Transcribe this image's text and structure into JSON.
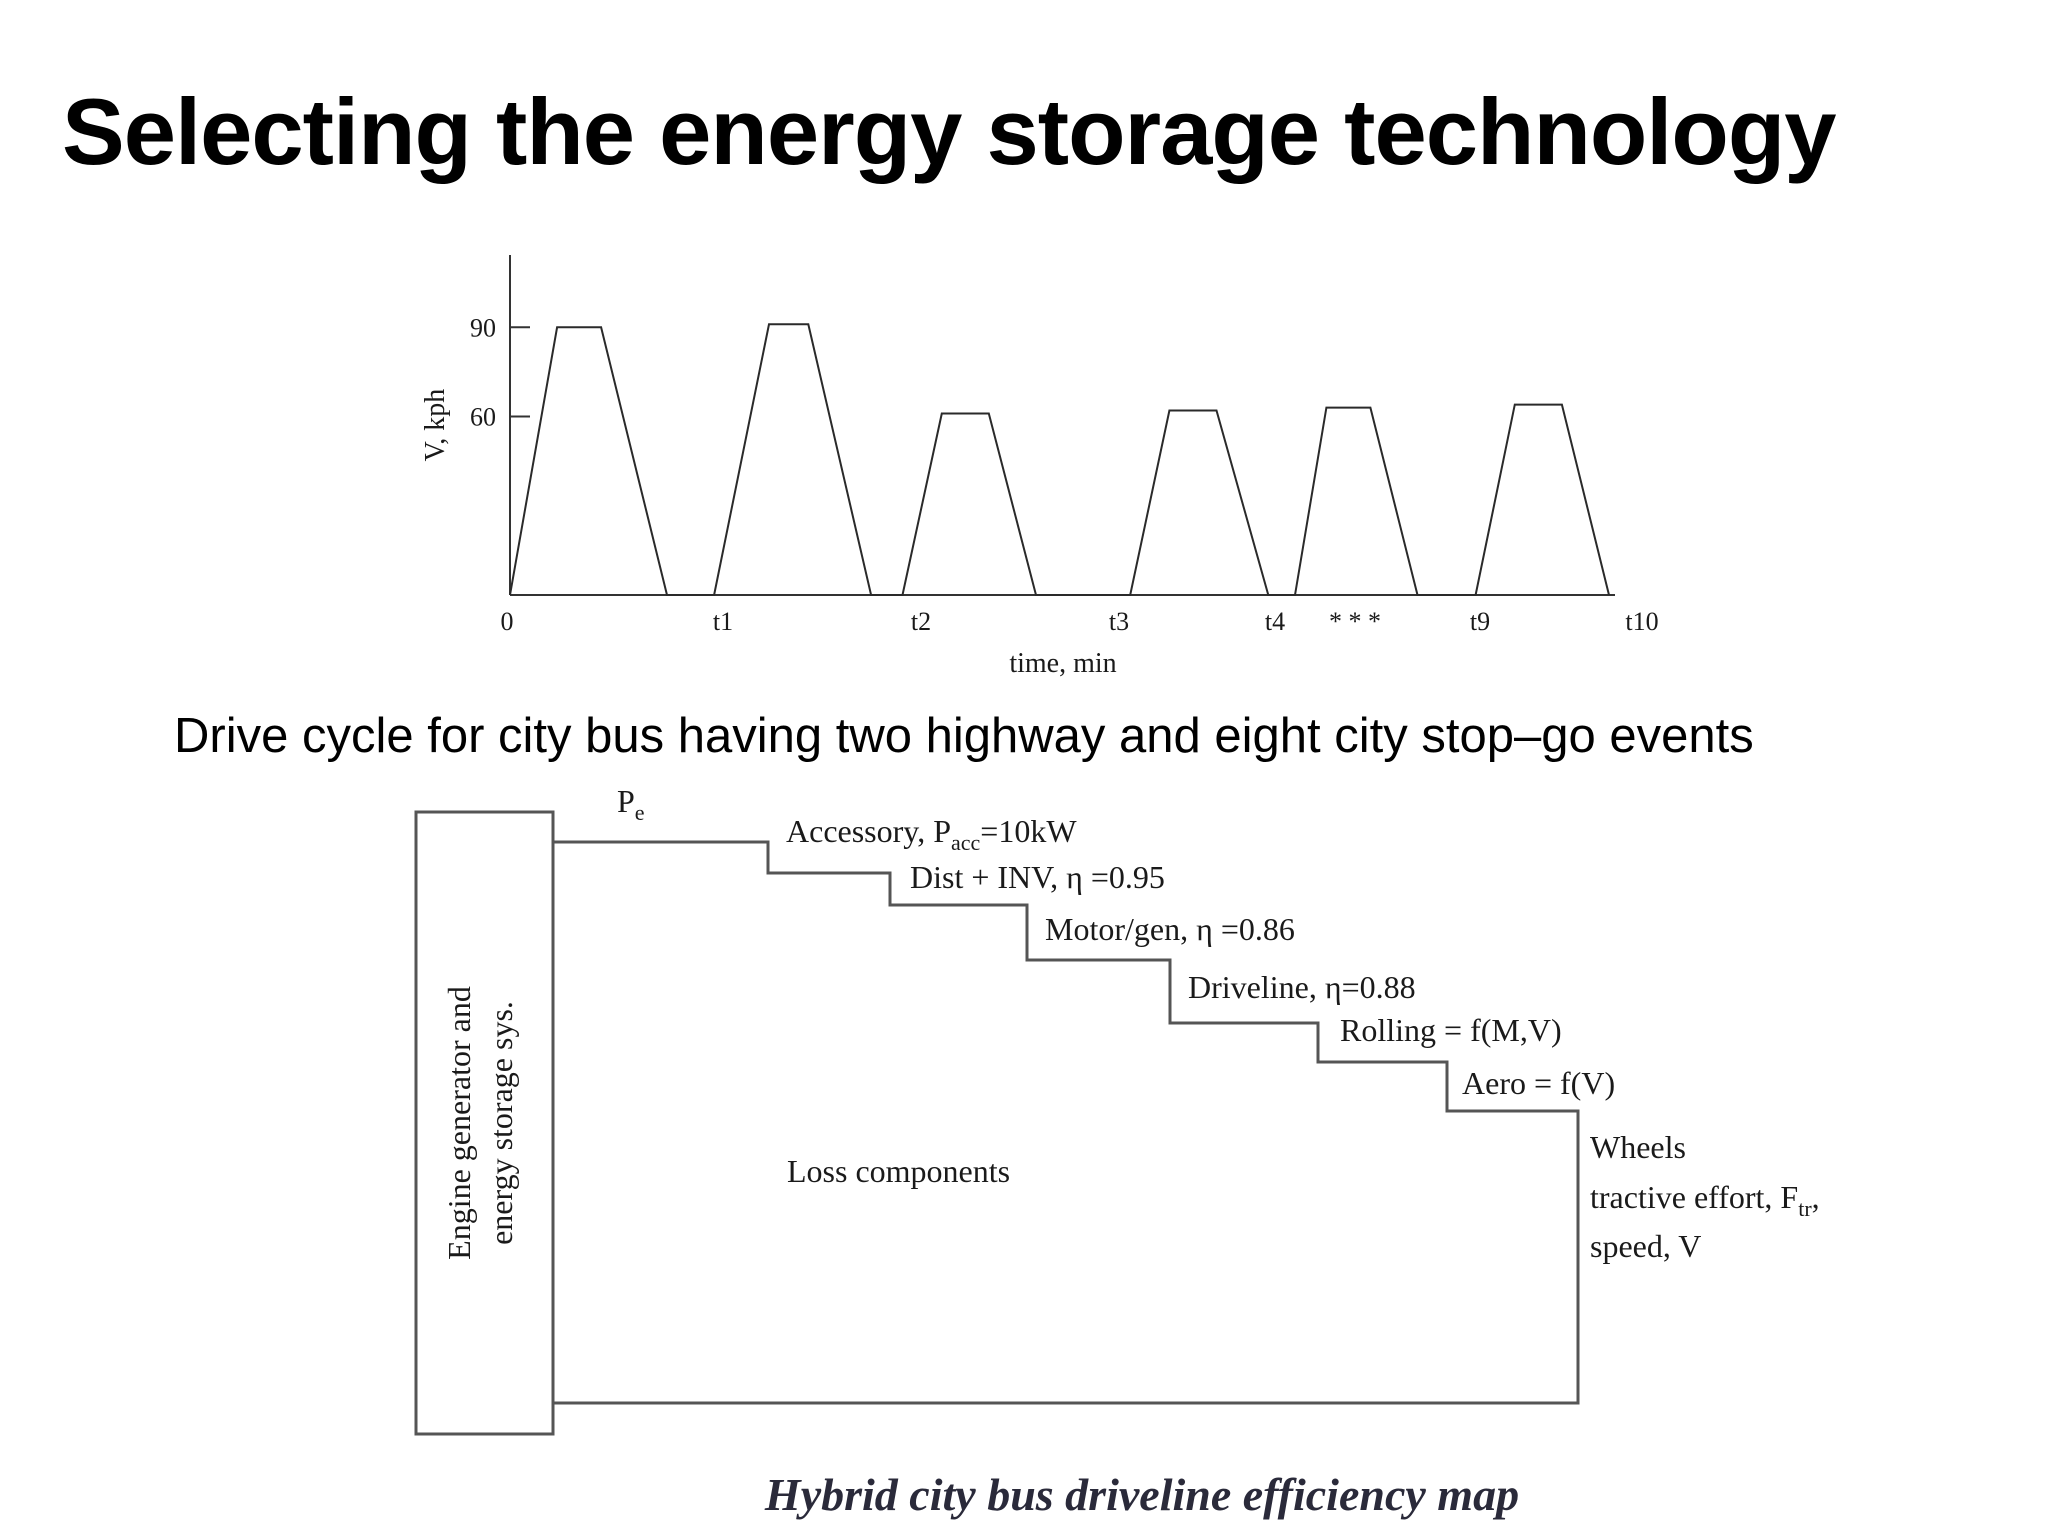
{
  "slide": {
    "title": "Selecting the energy storage technology",
    "caption": "Drive cycle for city bus having two highway and eight city stop–go events"
  },
  "chart_data": {
    "type": "line",
    "title": "",
    "xlabel": "time, min",
    "ylabel": "V, kph",
    "x_ticks": [
      "0",
      "t1",
      "t2",
      "t3",
      "t4",
      "* * *",
      "t9",
      "t10"
    ],
    "y_ticks": [
      "90",
      "60"
    ],
    "ylim": [
      0,
      100
    ],
    "grid": false,
    "series": [
      {
        "values": [
          [
            0,
            0
          ],
          [
            0.3,
            90
          ],
          [
            0.58,
            90
          ],
          [
            1.0,
            0
          ],
          [
            1.3,
            0
          ],
          [
            1.65,
            91
          ],
          [
            1.9,
            91
          ],
          [
            2.3,
            0
          ],
          [
            2.5,
            0
          ],
          [
            2.75,
            61
          ],
          [
            3.05,
            61
          ],
          [
            3.35,
            0
          ],
          [
            3.95,
            0
          ],
          [
            4.2,
            62
          ],
          [
            4.5,
            62
          ],
          [
            4.83,
            0
          ],
          [
            5.0,
            0
          ],
          [
            5.2,
            63
          ],
          [
            5.48,
            63
          ],
          [
            5.78,
            0
          ],
          [
            6.15,
            0
          ],
          [
            6.4,
            64
          ],
          [
            6.7,
            64
          ],
          [
            7.0,
            0
          ]
        ]
      }
    ]
  },
  "diagram": {
    "pe_label": "P",
    "pe_sub": "e",
    "left_box_line1": "Engine generator and",
    "left_box_line2": "energy storage sys.",
    "steps": {
      "accessory": "Accessory, P",
      "accessory_sub": "acc",
      "accessory_value": "=10kW",
      "dist": "Dist + INV, η =0.95",
      "motor": "Motor/gen, η =0.86",
      "driveline": "Driveline, η=0.88",
      "rolling": "Rolling = f(M,V)",
      "aero": "Aero = f(V)"
    },
    "loss_components": "Loss components",
    "wheels": {
      "line1": "Wheels",
      "line2": "tractive effort, F",
      "line2_sub": "tr",
      "line2_tail": ",",
      "line3": "speed, V"
    },
    "map_caption": "Hybrid city bus driveline efficiency map"
  }
}
